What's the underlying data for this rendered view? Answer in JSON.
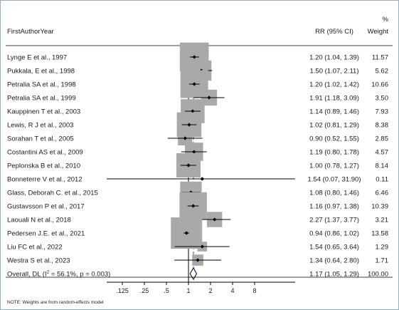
{
  "chart_data": {
    "type": "forest",
    "headers": {
      "study": "FirstAuthorYear",
      "effect": "RR (95% CI)",
      "weight_pct": "%",
      "weight": "Weight"
    },
    "x_scale": "log",
    "x_ticks": [
      0.125,
      0.25,
      0.5,
      1,
      2,
      4,
      8
    ],
    "x_tick_labels": [
      ".125",
      ".25",
      ".5",
      "1",
      "2",
      "4",
      "8"
    ],
    "null_line": 1,
    "pooled_line": 1.17,
    "studies": [
      {
        "label": "Lynge E et al., 1997",
        "rr": 1.2,
        "lo": 1.04,
        "hi": 1.39,
        "ci_text": "1.20 (1.04, 1.39)",
        "weight": 11.57,
        "weight_text": "11.57"
      },
      {
        "label": "Pukkala, E et al., 1998",
        "rr": 1.5,
        "lo": 1.07,
        "hi": 2.11,
        "ci_text": "1.50 (1.07, 2.11)",
        "weight": 5.62,
        "weight_text": "5.62"
      },
      {
        "label": "Petralia SA et al., 1998",
        "rr": 1.2,
        "lo": 1.02,
        "hi": 1.42,
        "ci_text": "1.20 (1.02, 1.42)",
        "weight": 10.66,
        "weight_text": "10.66"
      },
      {
        "label": "Petralia SA et al., 1999",
        "rr": 1.91,
        "lo": 1.18,
        "hi": 3.09,
        "ci_text": "1.91 (1.18, 3.09)",
        "weight": 3.5,
        "weight_text": "3.50"
      },
      {
        "label": "Kauppinen T et al., 2003",
        "rr": 1.14,
        "lo": 0.89,
        "hi": 1.46,
        "ci_text": "1.14 (0.89, 1.46)",
        "weight": 7.93,
        "weight_text": "7.93"
      },
      {
        "label": "Lewis, R J  et al., 2003",
        "rr": 1.02,
        "lo": 0.81,
        "hi": 1.29,
        "ci_text": "1.02 (0.81, 1.29)",
        "weight": 8.38,
        "weight_text": "8.38"
      },
      {
        "label": "Sorahan T et al., 2005",
        "rr": 0.9,
        "lo": 0.52,
        "hi": 1.55,
        "ci_text": "0.90 (0.52, 1.55)",
        "weight": 2.85,
        "weight_text": "2.85"
      },
      {
        "label": "Costantini AS et al., 2009",
        "rr": 1.19,
        "lo": 0.8,
        "hi": 1.78,
        "ci_text": "1.19 (0.80, 1.78)",
        "weight": 4.57,
        "weight_text": "4.57"
      },
      {
        "label": "Peplonska B et al., 2010",
        "rr": 1.0,
        "lo": 0.78,
        "hi": 1.27,
        "ci_text": "1.00 (0.78, 1.27)",
        "weight": 8.14,
        "weight_text": "8.14"
      },
      {
        "label": "Bonneterre V et al., 2012",
        "rr": 1.54,
        "lo": 0.07,
        "hi": 31.9,
        "ci_text": "1.54 (0.07, 31.90)",
        "weight": 0.11,
        "weight_text": "0.11"
      },
      {
        "label": "Glass, Deborah C.  et al., 2015",
        "rr": 1.08,
        "lo": 0.8,
        "hi": 1.46,
        "ci_text": "1.08 (0.80, 1.46)",
        "weight": 6.46,
        "weight_text": "6.46"
      },
      {
        "label": "Gustavsson P et al., 2017",
        "rr": 1.16,
        "lo": 0.97,
        "hi": 1.38,
        "ci_text": "1.16 (0.97, 1.38)",
        "weight": 10.39,
        "weight_text": "10.39"
      },
      {
        "label": "Laouali N et al., 2018",
        "rr": 2.27,
        "lo": 1.37,
        "hi": 3.77,
        "ci_text": "2.27 (1.37, 3.77)",
        "weight": 3.21,
        "weight_text": "3.21"
      },
      {
        "label": "Pedersen J.E. et al., 2021",
        "rr": 0.94,
        "lo": 0.86,
        "hi": 1.02,
        "ci_text": "0.94 (0.86, 1.02)",
        "weight": 13.58,
        "weight_text": "13.58"
      },
      {
        "label": "Liu FC et al., 2022",
        "rr": 1.54,
        "lo": 0.65,
        "hi": 3.64,
        "ci_text": "1.54 (0.65, 3.64)",
        "weight": 1.29,
        "weight_text": "1.29"
      },
      {
        "label": "Westra S et al., 2023",
        "rr": 1.34,
        "lo": 0.64,
        "hi": 2.8,
        "ci_text": "1.34 (0.64, 2.80)",
        "weight": 1.71,
        "weight_text": "1.71"
      }
    ],
    "overall": {
      "label_prefix": "Overall, DL (I",
      "label_sup": "2",
      "label_suffix": " = 56.1%, p = 0.003)",
      "rr": 1.17,
      "lo": 1.05,
      "hi": 1.29,
      "ci_text": "1.17 (1.05, 1.29)",
      "weight_text": "100.00"
    },
    "note": "NOTE: Weights are from random-effects model",
    "colors": {
      "box": "#a9a9a9",
      "ci": "#000000",
      "null_line": "#000000",
      "pooled_line": "#b22222",
      "diamond": "#1a1a5e",
      "frame": "#8fb3c4"
    }
  }
}
